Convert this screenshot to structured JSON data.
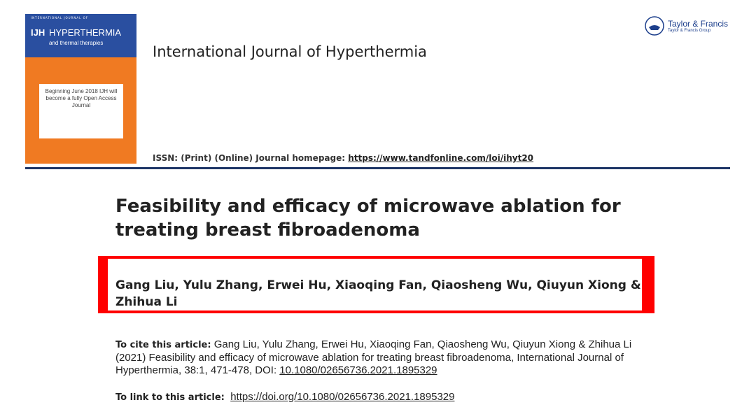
{
  "cover": {
    "series": "INTERNATIONAL JOURNAL OF",
    "abbr": "IJH",
    "name": "HYPERTHERMIA",
    "subtitle": "and thermal therapies",
    "notice": "Beginning June 2018 IJH will become a fully Open Access Journal"
  },
  "publisher": {
    "name": "Taylor & Francis",
    "group": "Taylor & Francis Group"
  },
  "journal": "International Journal of Hyperthermia",
  "issn": {
    "label": "ISSN: (Print) (Online) Journal homepage:",
    "url": "https://www.tandfonline.com/loi/ihyt20"
  },
  "title": "Feasibility and efficacy of microwave ablation for treating breast fibroadenoma",
  "authors": "Gang Liu, Yulu Zhang, Erwei Hu, Xiaoqing Fan, Qiaosheng Wu, Qiuyun Xiong & Zhihua Li",
  "cite": {
    "label": "To cite this article:",
    "text": "Gang Liu, Yulu Zhang, Erwei Hu, Xiaoqing Fan, Qiaosheng Wu, Qiuyun Xiong & Zhihua Li (2021) Feasibility and efficacy of microwave ablation for treating breast fibroadenoma, International Journal of Hyperthermia, 38:1, 471-478, DOI:",
    "doi": "10.1080/02656736.2021.1895329"
  },
  "link": {
    "label": "To link to this article:",
    "url": "https://doi.org/10.1080/02656736.2021.1895329"
  }
}
